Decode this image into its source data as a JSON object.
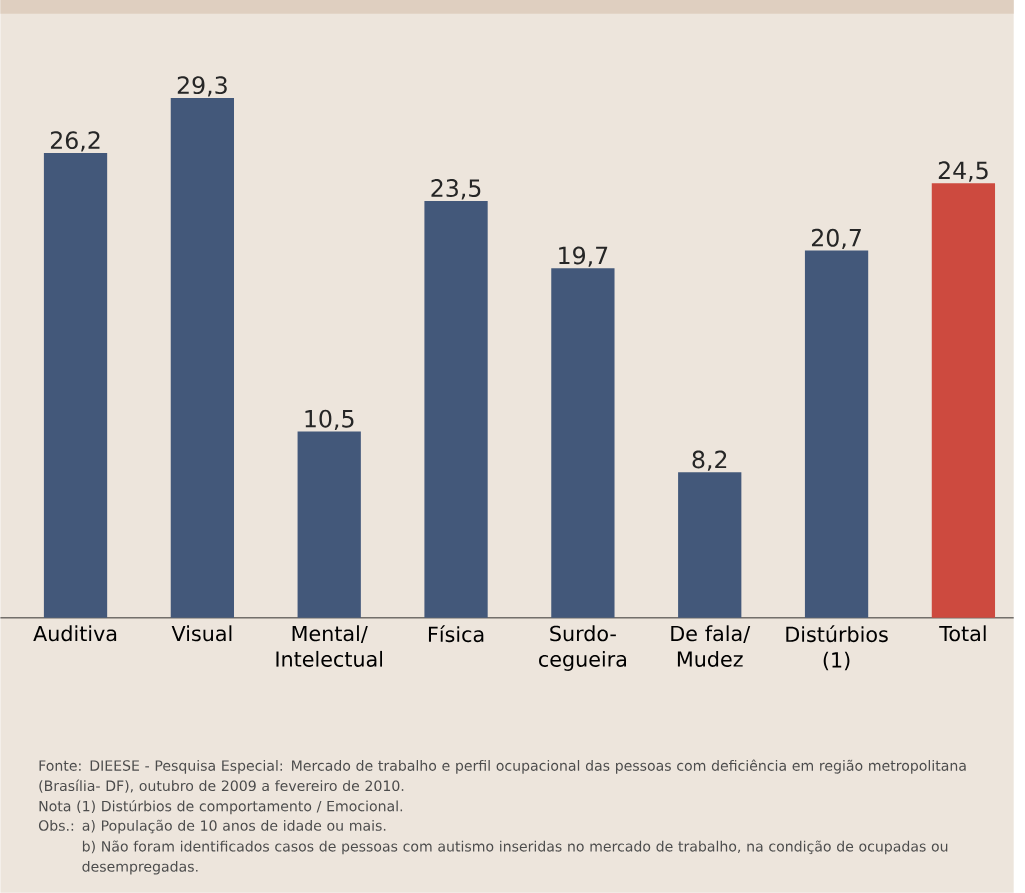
{
  "chart_data": {
    "type": "bar",
    "categories": [
      "Auditiva",
      "Visual",
      "Mental/ Intelectual",
      "Física",
      "Surdo-cegueira",
      "De fala/ Mudez",
      "Distúrbios (1)",
      "Total"
    ],
    "values": [
      26.2,
      29.3,
      10.5,
      23.5,
      19.7,
      8.2,
      20.7,
      24.5
    ],
    "value_labels": [
      "26,2",
      "29,3",
      "10,5",
      "23,5",
      "19,7",
      "8,2",
      "20,7",
      "24,5"
    ],
    "colors": [
      "#43587a",
      "#43587a",
      "#43587a",
      "#43587a",
      "#43587a",
      "#43587a",
      "#43587a",
      "#cd4a3f"
    ],
    "annotations": [
      "Fonte: DIEESE - Pesquisa Especial: Mercado de trabalho e perfil ocupacional das pessoas com deficiência em região metropolitana (Brasília- DF), outubro de 2009 a fevereiro de 2010.",
      "Nota (1) Distúrbios de comportamento / Emocional.",
      "Obs.:  a) População de 10 anos de idade ou mais.",
      "b) Não foram identificados casos de pessoas com autismo inseridas no mercado de trabalho, na condição de ocupadas ou desempregadas."
    ]
  }
}
